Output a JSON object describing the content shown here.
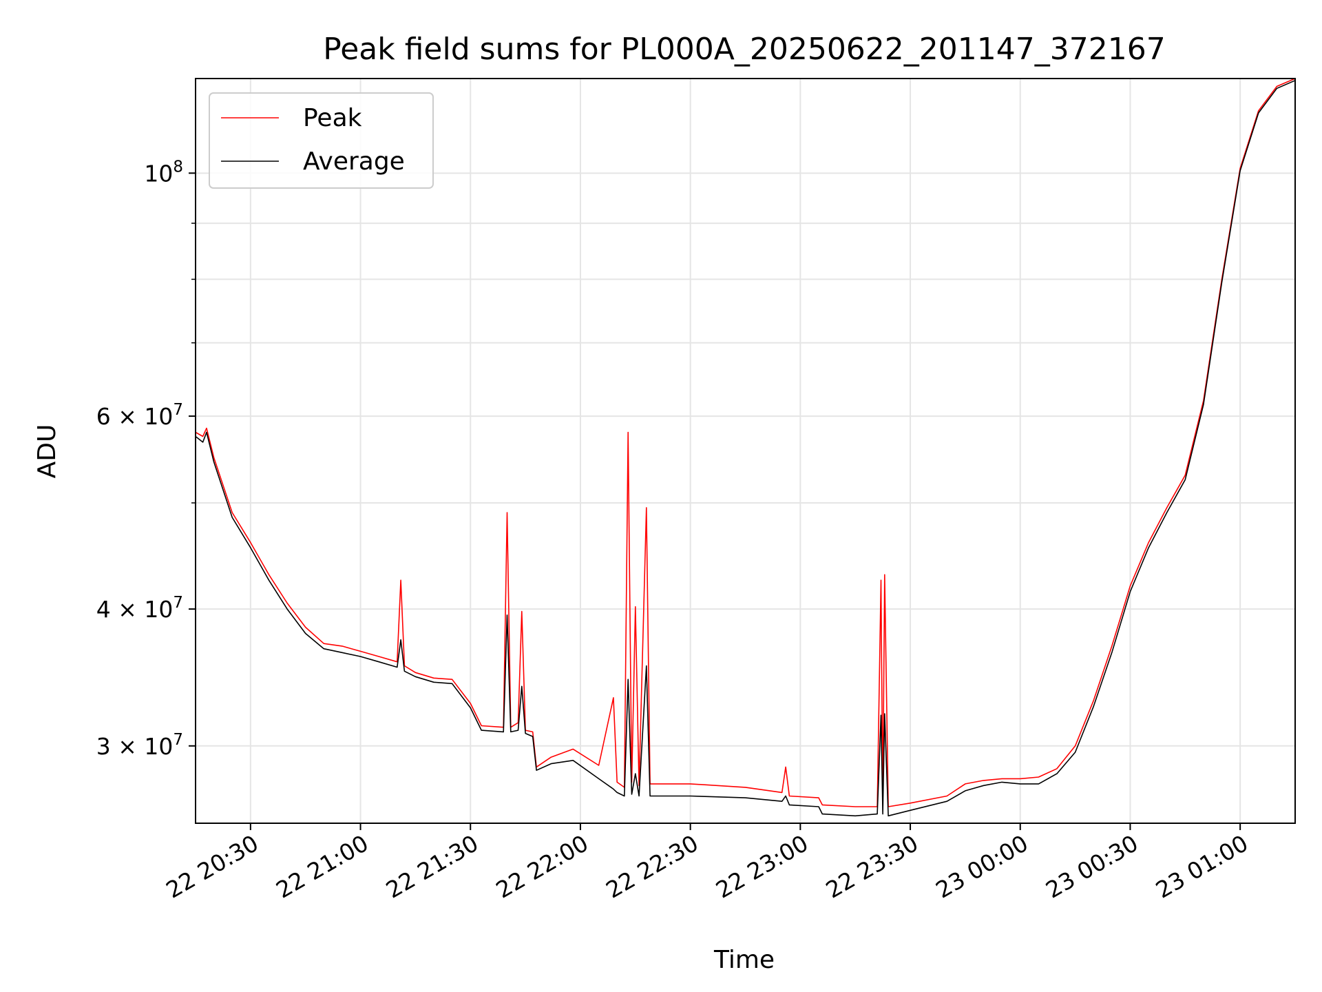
{
  "chart_data": {
    "type": "line",
    "title": "Peak field sums for PL000A_20250622_201147_372167",
    "xlabel": "Time",
    "ylabel": "ADU",
    "y_scale": "log",
    "ylim": [
      25500000,
      122000000
    ],
    "xlim": [
      "2025-06-22 20:15",
      "2025-06-23 01:15"
    ],
    "grid": true,
    "legend_position": "top-left",
    "x_ticks": [
      {
        "t": "2025-06-22 20:30",
        "label": "22 20:30"
      },
      {
        "t": "2025-06-22 21:00",
        "label": "22 21:00"
      },
      {
        "t": "2025-06-22 21:30",
        "label": "22 21:30"
      },
      {
        "t": "2025-06-22 22:00",
        "label": "22 22:00"
      },
      {
        "t": "2025-06-22 22:30",
        "label": "22 22:30"
      },
      {
        "t": "2025-06-22 23:00",
        "label": "22 23:00"
      },
      {
        "t": "2025-06-22 23:30",
        "label": "22 23:30"
      },
      {
        "t": "2025-06-23 00:00",
        "label": "23 00:00"
      },
      {
        "t": "2025-06-23 00:30",
        "label": "23 00:30"
      },
      {
        "t": "2025-06-23 01:00",
        "label": "23 01:00"
      }
    ],
    "y_ticks": [
      {
        "value": 30000000,
        "base": "3 × 10",
        "exp": "7"
      },
      {
        "value": 40000000,
        "base": "4 × 10",
        "exp": "7"
      },
      {
        "value": 60000000,
        "base": "6 × 10",
        "exp": "7"
      },
      {
        "value": 100000000,
        "base": "10",
        "exp": "8"
      }
    ],
    "y_minor_ticks": [
      50000000,
      70000000,
      80000000,
      90000000
    ],
    "series": [
      {
        "name": "Peak",
        "color": "#ff0000",
        "points": [
          [
            "2025-06-22 20:15",
            58000000
          ],
          [
            "2025-06-22 20:17",
            57500000
          ],
          [
            "2025-06-22 20:18",
            58500000
          ],
          [
            "2025-06-22 20:20",
            55000000
          ],
          [
            "2025-06-22 20:25",
            49000000
          ],
          [
            "2025-06-22 20:30",
            46000000
          ],
          [
            "2025-06-22 20:35",
            43000000
          ],
          [
            "2025-06-22 20:40",
            40500000
          ],
          [
            "2025-06-22 20:45",
            38500000
          ],
          [
            "2025-06-22 20:50",
            37200000
          ],
          [
            "2025-06-22 20:55",
            37000000
          ],
          [
            "2025-06-22 21:00",
            36600000
          ],
          [
            "2025-06-22 21:05",
            36200000
          ],
          [
            "2025-06-22 21:10",
            35800000
          ],
          [
            "2025-06-22 21:11",
            42500000
          ],
          [
            "2025-06-22 21:12",
            35500000
          ],
          [
            "2025-06-22 21:15",
            35000000
          ],
          [
            "2025-06-22 21:20",
            34600000
          ],
          [
            "2025-06-22 21:25",
            34500000
          ],
          [
            "2025-06-22 21:30",
            32800000
          ],
          [
            "2025-06-22 21:33",
            31300000
          ],
          [
            "2025-06-22 21:39",
            31200000
          ],
          [
            "2025-06-22 21:40",
            49000000
          ],
          [
            "2025-06-22 21:41",
            31200000
          ],
          [
            "2025-06-22 21:43",
            31500000
          ],
          [
            "2025-06-22 21:44",
            39800000
          ],
          [
            "2025-06-22 21:45",
            31000000
          ],
          [
            "2025-06-22 21:47",
            30900000
          ],
          [
            "2025-06-22 21:48",
            28700000
          ],
          [
            "2025-06-22 21:52",
            29300000
          ],
          [
            "2025-06-22 21:58",
            29800000
          ],
          [
            "2025-06-22 22:05",
            28800000
          ],
          [
            "2025-06-22 22:09",
            33200000
          ],
          [
            "2025-06-22 22:10",
            27800000
          ],
          [
            "2025-06-22 22:12",
            27500000
          ],
          [
            "2025-06-22 22:13",
            58000000
          ],
          [
            "2025-06-22 22:14",
            27800000
          ],
          [
            "2025-06-22 22:15",
            40200000
          ],
          [
            "2025-06-22 22:16",
            27600000
          ],
          [
            "2025-06-22 22:18",
            49500000
          ],
          [
            "2025-06-22 22:19",
            27700000
          ],
          [
            "2025-06-22 22:30",
            27700000
          ],
          [
            "2025-06-22 22:45",
            27500000
          ],
          [
            "2025-06-22 22:55",
            27200000
          ],
          [
            "2025-06-22 22:56",
            28700000
          ],
          [
            "2025-06-22 22:57",
            27000000
          ],
          [
            "2025-06-22 23:05",
            26900000
          ],
          [
            "2025-06-22 23:06",
            26500000
          ],
          [
            "2025-06-22 23:15",
            26400000
          ],
          [
            "2025-06-22 23:21",
            26400000
          ],
          [
            "2025-06-22 23:22",
            42500000
          ],
          [
            "2025-06-22 23:22:30",
            26500000
          ],
          [
            "2025-06-22 23:23",
            43000000
          ],
          [
            "2025-06-22 23:24",
            26400000
          ],
          [
            "2025-06-22 23:30",
            26600000
          ],
          [
            "2025-06-22 23:40",
            27000000
          ],
          [
            "2025-06-22 23:45",
            27700000
          ],
          [
            "2025-06-22 23:50",
            27900000
          ],
          [
            "2025-06-22 23:55",
            28000000
          ],
          [
            "2025-06-23 00:00",
            28000000
          ],
          [
            "2025-06-23 00:05",
            28100000
          ],
          [
            "2025-06-23 00:10",
            28600000
          ],
          [
            "2025-06-23 00:15",
            30000000
          ],
          [
            "2025-06-23 00:20",
            33000000
          ],
          [
            "2025-06-23 00:25",
            37000000
          ],
          [
            "2025-06-23 00:30",
            42000000
          ],
          [
            "2025-06-23 00:35",
            46000000
          ],
          [
            "2025-06-23 00:40",
            49500000
          ],
          [
            "2025-06-23 00:45",
            53000000
          ],
          [
            "2025-06-23 00:50",
            62000000
          ],
          [
            "2025-06-23 00:55",
            80000000
          ],
          [
            "2025-06-23 01:00",
            101000000
          ],
          [
            "2025-06-23 01:05",
            114000000
          ],
          [
            "2025-06-23 01:10",
            120000000
          ],
          [
            "2025-06-23 01:15",
            122000000
          ]
        ]
      },
      {
        "name": "Average",
        "color": "#000000",
        "points": [
          [
            "2025-06-22 20:15",
            57500000
          ],
          [
            "2025-06-22 20:17",
            56800000
          ],
          [
            "2025-06-22 20:18",
            58000000
          ],
          [
            "2025-06-22 20:20",
            54500000
          ],
          [
            "2025-06-22 20:25",
            48500000
          ],
          [
            "2025-06-22 20:30",
            45500000
          ],
          [
            "2025-06-22 20:35",
            42500000
          ],
          [
            "2025-06-22 20:40",
            40000000
          ],
          [
            "2025-06-22 20:45",
            38000000
          ],
          [
            "2025-06-22 20:50",
            36800000
          ],
          [
            "2025-06-22 20:55",
            36500000
          ],
          [
            "2025-06-22 21:00",
            36200000
          ],
          [
            "2025-06-22 21:05",
            35800000
          ],
          [
            "2025-06-22 21:10",
            35400000
          ],
          [
            "2025-06-22 21:11",
            37500000
          ],
          [
            "2025-06-22 21:12",
            35100000
          ],
          [
            "2025-06-22 21:15",
            34700000
          ],
          [
            "2025-06-22 21:20",
            34300000
          ],
          [
            "2025-06-22 21:25",
            34200000
          ],
          [
            "2025-06-22 21:30",
            32500000
          ],
          [
            "2025-06-22 21:33",
            31000000
          ],
          [
            "2025-06-22 21:39",
            30900000
          ],
          [
            "2025-06-22 21:40",
            39500000
          ],
          [
            "2025-06-22 21:41",
            30900000
          ],
          [
            "2025-06-22 21:43",
            31000000
          ],
          [
            "2025-06-22 21:44",
            34000000
          ],
          [
            "2025-06-22 21:45",
            30800000
          ],
          [
            "2025-06-22 21:47",
            30600000
          ],
          [
            "2025-06-22 21:48",
            28500000
          ],
          [
            "2025-06-22 21:52",
            28900000
          ],
          [
            "2025-06-22 21:58",
            29100000
          ],
          [
            "2025-06-22 22:05",
            28000000
          ],
          [
            "2025-06-22 22:09",
            27400000
          ],
          [
            "2025-06-22 22:10",
            27200000
          ],
          [
            "2025-06-22 22:12",
            27000000
          ],
          [
            "2025-06-22 22:13",
            34500000
          ],
          [
            "2025-06-22 22:14",
            27100000
          ],
          [
            "2025-06-22 22:15",
            28300000
          ],
          [
            "2025-06-22 22:16",
            27000000
          ],
          [
            "2025-06-22 22:18",
            35500000
          ],
          [
            "2025-06-22 22:19",
            27000000
          ],
          [
            "2025-06-22 22:30",
            27000000
          ],
          [
            "2025-06-22 22:45",
            26900000
          ],
          [
            "2025-06-22 22:55",
            26700000
          ],
          [
            "2025-06-22 22:56",
            27000000
          ],
          [
            "2025-06-22 22:57",
            26500000
          ],
          [
            "2025-06-22 23:05",
            26400000
          ],
          [
            "2025-06-22 23:06",
            26000000
          ],
          [
            "2025-06-22 23:15",
            25900000
          ],
          [
            "2025-06-22 23:21",
            26000000
          ],
          [
            "2025-06-22 23:22",
            32000000
          ],
          [
            "2025-06-22 23:22:30",
            26000000
          ],
          [
            "2025-06-22 23:23",
            32100000
          ],
          [
            "2025-06-22 23:24",
            25900000
          ],
          [
            "2025-06-22 23:30",
            26200000
          ],
          [
            "2025-06-22 23:40",
            26700000
          ],
          [
            "2025-06-22 23:45",
            27300000
          ],
          [
            "2025-06-22 23:50",
            27600000
          ],
          [
            "2025-06-22 23:55",
            27800000
          ],
          [
            "2025-06-23 00:00",
            27700000
          ],
          [
            "2025-06-23 00:05",
            27700000
          ],
          [
            "2025-06-23 00:10",
            28300000
          ],
          [
            "2025-06-23 00:15",
            29600000
          ],
          [
            "2025-06-23 00:20",
            32600000
          ],
          [
            "2025-06-23 00:25",
            36500000
          ],
          [
            "2025-06-23 00:30",
            41500000
          ],
          [
            "2025-06-23 00:35",
            45500000
          ],
          [
            "2025-06-23 00:40",
            49000000
          ],
          [
            "2025-06-23 00:45",
            52500000
          ],
          [
            "2025-06-23 00:50",
            61500000
          ],
          [
            "2025-06-23 00:55",
            79500000
          ],
          [
            "2025-06-23 01:00",
            100500000
          ],
          [
            "2025-06-23 01:05",
            113500000
          ],
          [
            "2025-06-23 01:10",
            119500000
          ],
          [
            "2025-06-23 01:15",
            121500000
          ]
        ]
      }
    ]
  }
}
